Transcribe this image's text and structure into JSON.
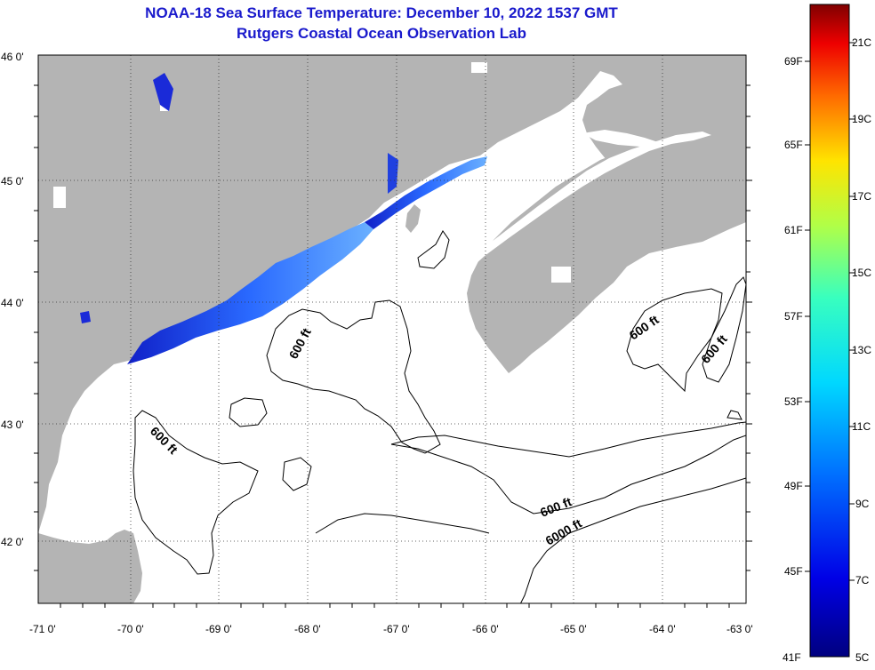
{
  "title": {
    "line1": "NOAA-18 Sea Surface Temperature:  December 10, 2022 1537 GMT",
    "line2": "Rutgers Coastal Ocean Observation Lab"
  },
  "axes": {
    "lon_ticks": [
      "-71 0'",
      "-70 0'",
      "-69 0'",
      "-68 0'",
      "-67 0'",
      "-66 0'",
      "-65 0'",
      "-64 0'",
      "-63 0'"
    ],
    "lat_ticks": [
      "46 0'",
      "45 0'",
      "44 0'",
      "43 0'",
      "42 0'"
    ],
    "lon_range": [
      -71,
      -63
    ],
    "lat_range": [
      41.5,
      46
    ],
    "grid": "dotted"
  },
  "contours": {
    "labels": [
      "600 ft",
      "600 ft",
      "600 ft",
      "600 ft",
      "600 ft",
      "6000 ft"
    ]
  },
  "colorbar": {
    "fahrenheit": [
      "69F",
      "65F",
      "61F",
      "57F",
      "53F",
      "49F",
      "45F",
      "41F"
    ],
    "celsius": [
      "21C",
      "19C",
      "17C",
      "15C",
      "13C",
      "11C",
      "9C",
      "7C",
      "5C"
    ],
    "range_c": [
      5,
      22
    ]
  },
  "colors": {
    "land": "#b4b4b4",
    "ocean_no_data": "#ffffff",
    "title": "#1a1acc"
  }
}
